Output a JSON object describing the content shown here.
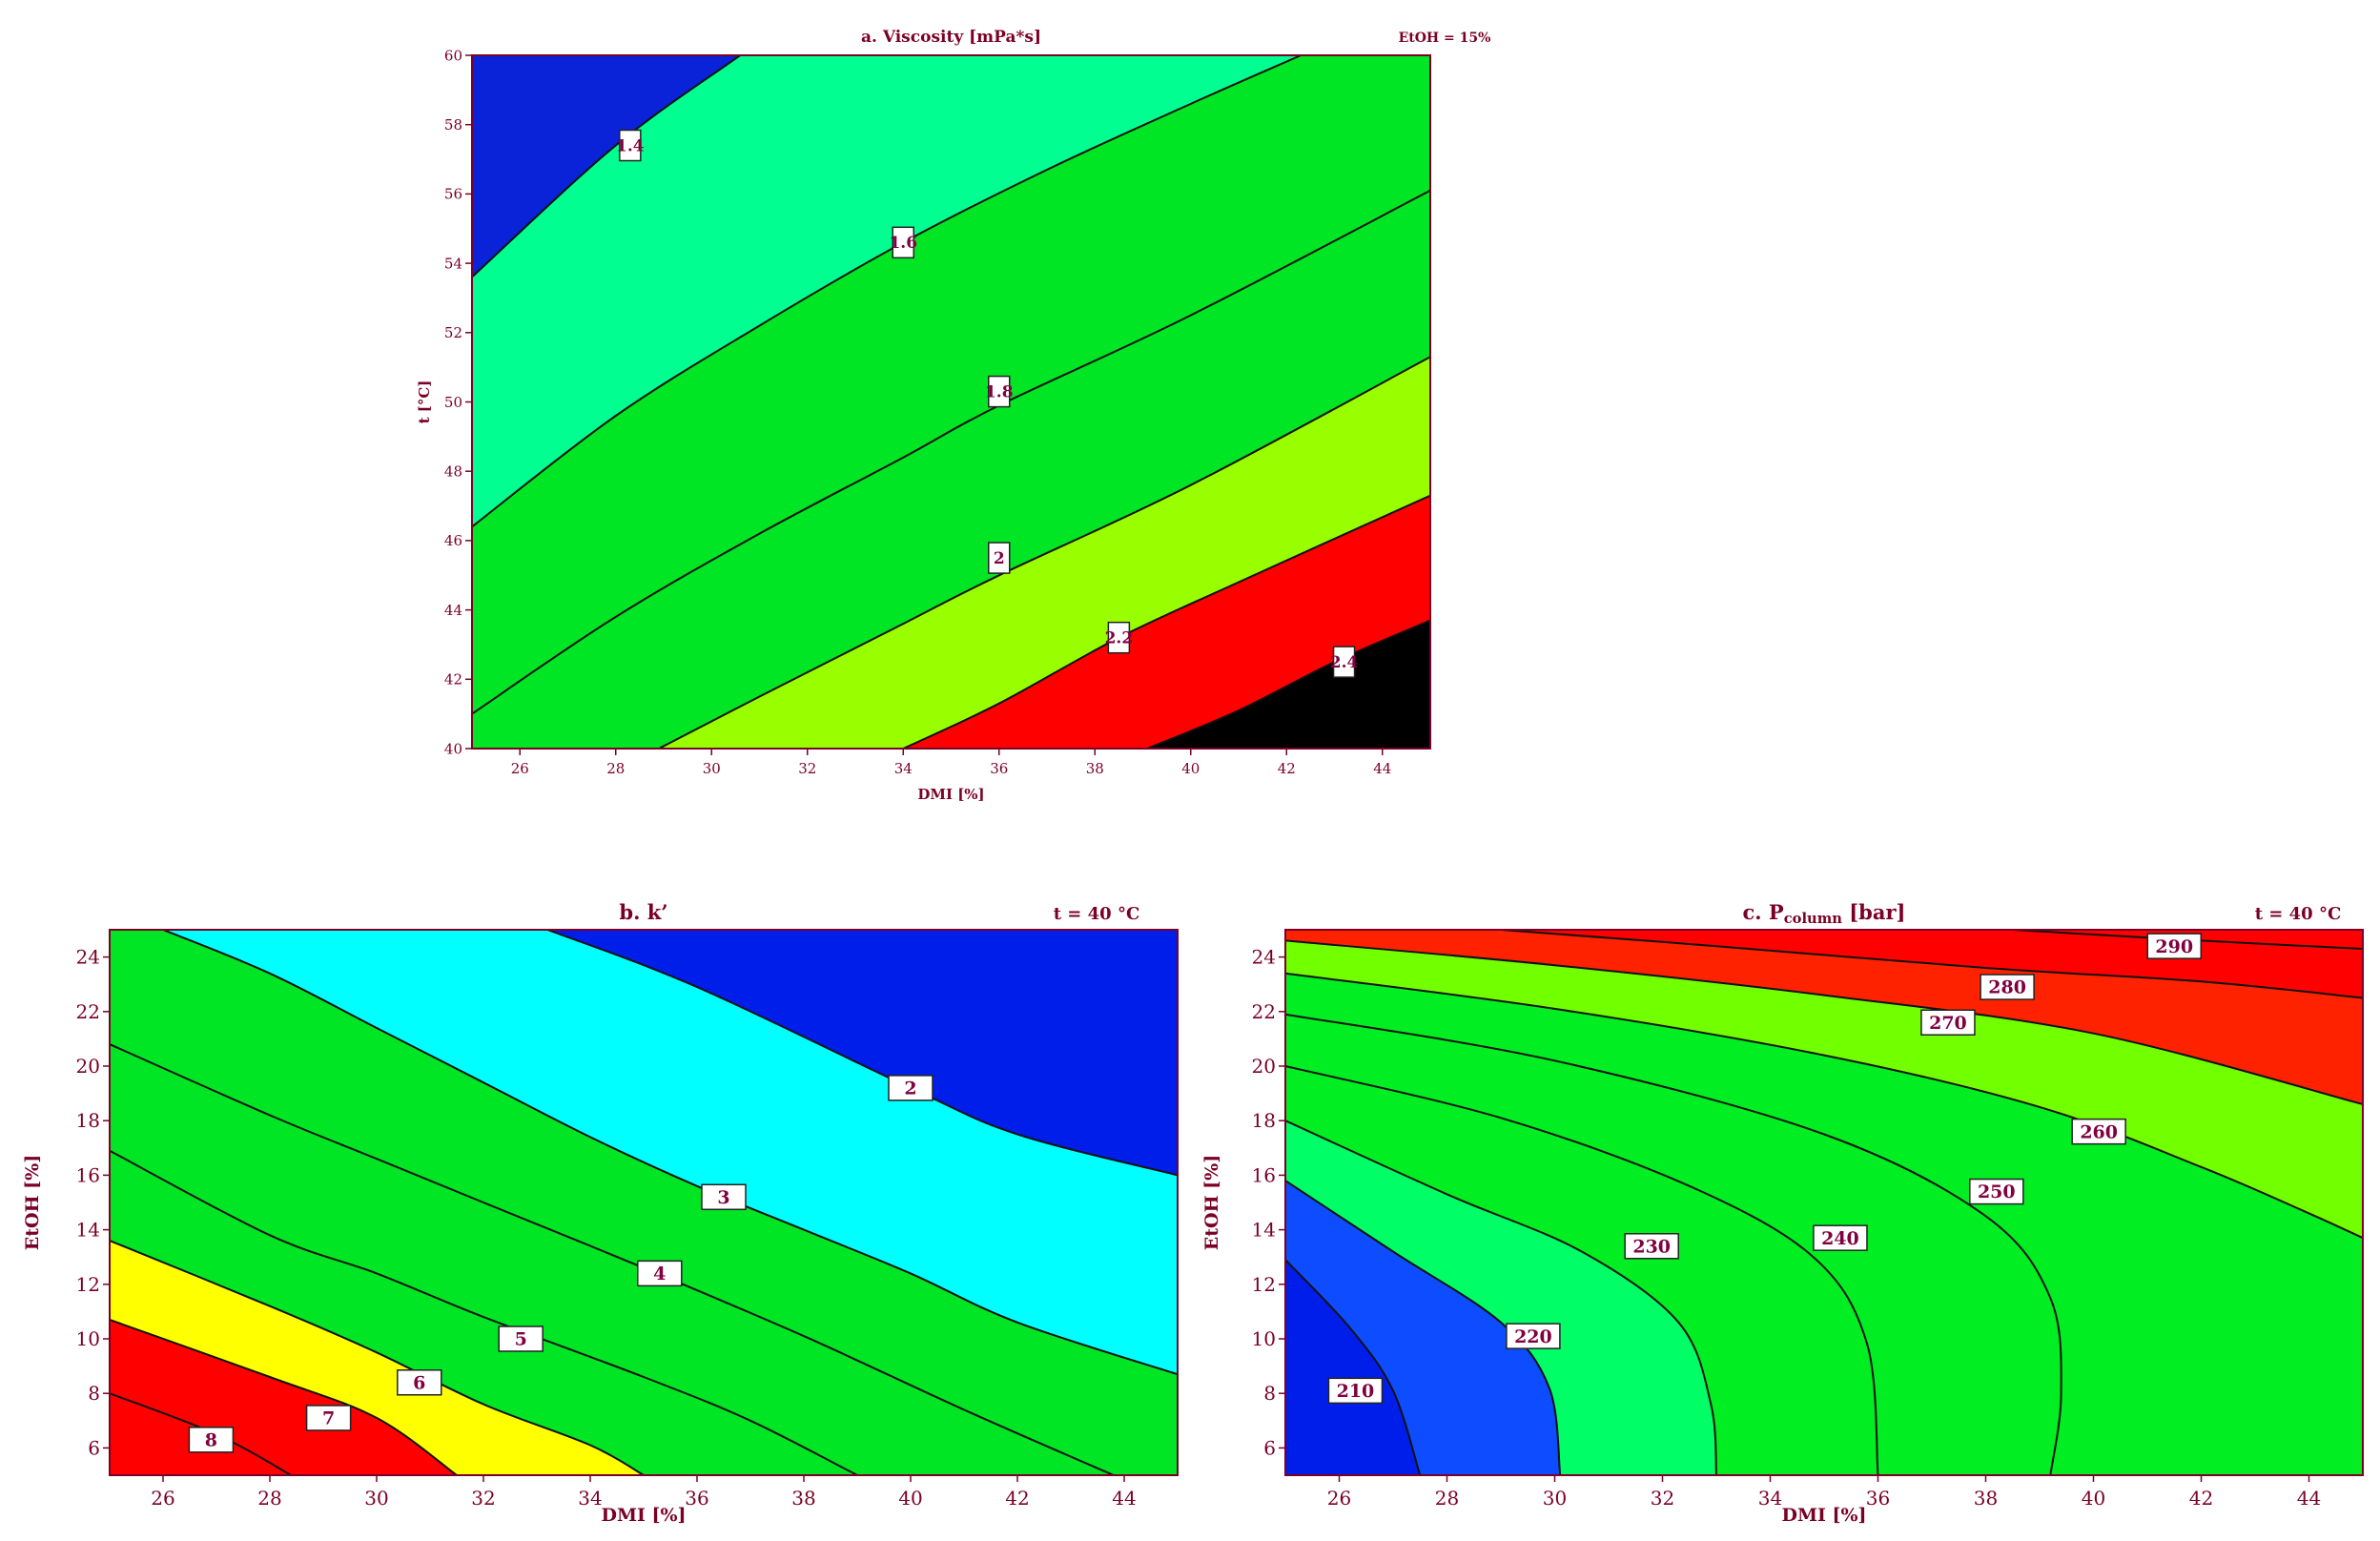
{
  "chart_data": [
    {
      "id": "a",
      "type": "contour",
      "title": "a. Viscosity [mPa*s]",
      "annotation": "EtOH = 15%",
      "xlabel": "DMI [%]",
      "ylabel": "t [°C]",
      "xlim": [
        25,
        45
      ],
      "ylim": [
        40,
        60
      ],
      "xticks": [
        26,
        28,
        30,
        32,
        34,
        36,
        38,
        40,
        42,
        44
      ],
      "yticks": [
        40,
        42,
        44,
        46,
        48,
        50,
        52,
        54,
        56,
        58,
        60
      ],
      "levels": [
        "1.4",
        "1.6",
        "1.8",
        "2",
        "2.2",
        "2.4"
      ],
      "contours": [
        {
          "level": "1.4",
          "points": [
            [
              25,
              53.6
            ],
            [
              28,
              57.4
            ],
            [
              30.6,
              60
            ]
          ],
          "label_at": [
            28.3,
            57.4
          ]
        },
        {
          "level": "1.6",
          "points": [
            [
              25,
              46.4
            ],
            [
              28,
              49.6
            ],
            [
              31,
              52.2
            ],
            [
              34,
              54.6
            ],
            [
              37,
              56.7
            ],
            [
              40,
              58.6
            ],
            [
              42.3,
              60
            ]
          ],
          "label_at": [
            34,
            54.6
          ]
        },
        {
          "level": "1.8",
          "points": [
            [
              25,
              41.0
            ],
            [
              28,
              43.8
            ],
            [
              31,
              46.2
            ],
            [
              34,
              48.4
            ],
            [
              36,
              49.9
            ],
            [
              40,
              52.5
            ],
            [
              45,
              56.1
            ]
          ],
          "label_at": [
            36,
            50.3
          ]
        },
        {
          "level": "2",
          "points": [
            [
              28.9,
              40
            ],
            [
              31,
              41.5
            ],
            [
              34,
              43.6
            ],
            [
              36,
              45.0
            ],
            [
              40,
              47.6
            ],
            [
              45,
              51.3
            ]
          ],
          "label_at": [
            36,
            45.5
          ]
        },
        {
          "level": "2.2",
          "points": [
            [
              34,
              40
            ],
            [
              36,
              41.3
            ],
            [
              38.5,
              43.2
            ],
            [
              41,
              44.8
            ],
            [
              45,
              47.3
            ]
          ],
          "label_at": [
            38.5,
            43.2
          ]
        },
        {
          "level": "2.4",
          "points": [
            [
              39.1,
              40
            ],
            [
              41,
              41.1
            ],
            [
              43,
              42.5
            ],
            [
              45,
              43.7
            ]
          ],
          "label_at": [
            43.2,
            42.5
          ]
        }
      ]
    },
    {
      "id": "b",
      "type": "contour",
      "title": "b. k’",
      "annotation": "t = 40 °C",
      "xlabel": "DMI [%]",
      "ylabel": "EtOH [%]",
      "xlim": [
        25,
        45
      ],
      "ylim": [
        5,
        25
      ],
      "xticks": [
        26,
        28,
        30,
        32,
        34,
        36,
        38,
        40,
        42,
        44
      ],
      "yticks": [
        6,
        8,
        10,
        12,
        14,
        16,
        18,
        20,
        22,
        24
      ],
      "levels": [
        "2",
        "3",
        "4",
        "5",
        "6",
        "7",
        "8"
      ],
      "contours": [
        {
          "level": "2",
          "points": [
            [
              33.2,
              25
            ],
            [
              36,
              22.9
            ],
            [
              40,
              19.2
            ],
            [
              42,
              17.5
            ],
            [
              45,
              16.0
            ]
          ],
          "label_at": [
            40,
            19.2
          ]
        },
        {
          "level": "3",
          "points": [
            [
              26,
              25
            ],
            [
              28,
              23.4
            ],
            [
              30,
              21.4
            ],
            [
              32,
              19.4
            ],
            [
              34,
              17.4
            ],
            [
              36,
              15.6
            ],
            [
              38,
              14.0
            ],
            [
              40,
              12.4
            ],
            [
              42,
              10.6
            ],
            [
              45,
              8.7
            ]
          ],
          "label_at": [
            36.5,
            15.2
          ]
        },
        {
          "level": "4",
          "points": [
            [
              25,
              20.8
            ],
            [
              28,
              18.2
            ],
            [
              30,
              16.6
            ],
            [
              32,
              15.0
            ],
            [
              35,
              12.6
            ],
            [
              38,
              10.1
            ],
            [
              41,
              7.4
            ],
            [
              43.8,
              5
            ]
          ],
          "label_at": [
            35.3,
            12.4
          ]
        },
        {
          "level": "5",
          "points": [
            [
              25,
              16.9
            ],
            [
              28,
              13.8
            ],
            [
              30,
              12.4
            ],
            [
              32,
              10.8
            ],
            [
              35,
              8.6
            ],
            [
              37,
              7.0
            ],
            [
              39,
              5
            ]
          ],
          "label_at": [
            32.7,
            10.0
          ]
        },
        {
          "level": "6",
          "points": [
            [
              25,
              13.6
            ],
            [
              28,
              11.2
            ],
            [
              30,
              9.5
            ],
            [
              32,
              7.6
            ],
            [
              34,
              6.1
            ],
            [
              35,
              5
            ]
          ],
          "label_at": [
            30.8,
            8.4
          ]
        },
        {
          "level": "7",
          "points": [
            [
              25,
              10.7
            ],
            [
              28,
              8.6
            ],
            [
              30,
              7.1
            ],
            [
              31.5,
              5
            ]
          ],
          "label_at": [
            29.1,
            7.1
          ]
        },
        {
          "level": "8",
          "points": [
            [
              25,
              8.0
            ],
            [
              27,
              6.5
            ],
            [
              28.4,
              5
            ]
          ],
          "label_at": [
            26.9,
            6.3
          ]
        }
      ]
    },
    {
      "id": "c",
      "type": "contour",
      "title": "c. Pcolumn [bar]",
      "title_main": "c. P",
      "title_sub": "column",
      "title_unit": " [bar]",
      "annotation": "t = 40 °C",
      "xlabel": "DMI [%]",
      "ylabel": "EtOH [%]",
      "xlim": [
        25,
        45
      ],
      "ylim": [
        5,
        25
      ],
      "xticks": [
        26,
        28,
        30,
        32,
        34,
        36,
        38,
        40,
        42,
        44
      ],
      "yticks": [
        6,
        8,
        10,
        12,
        14,
        16,
        18,
        20,
        22,
        24
      ],
      "levels": [
        "210",
        "220",
        "230",
        "240",
        "250",
        "260",
        "270",
        "280",
        "290"
      ],
      "contours": [
        {
          "level": "210",
          "points": [
            [
              25,
              12.9
            ],
            [
              26.2,
              10.4
            ],
            [
              27,
              8.1
            ],
            [
              27.5,
              5
            ]
          ],
          "label_at": [
            26.3,
            8.1
          ]
        },
        {
          "level": "220",
          "points": [
            [
              25,
              15.8
            ],
            [
              27,
              13.2
            ],
            [
              29,
              10.6
            ],
            [
              29.9,
              8.2
            ],
            [
              30.1,
              5
            ]
          ],
          "label_at": [
            29.6,
            10.1
          ]
        },
        {
          "level": "230",
          "points": [
            [
              25,
              18.0
            ],
            [
              28,
              15.3
            ],
            [
              30.5,
              13.2
            ],
            [
              32.3,
              10.6
            ],
            [
              32.9,
              7.6
            ],
            [
              33,
              5
            ]
          ],
          "label_at": [
            31.8,
            13.4
          ]
        },
        {
          "level": "240",
          "points": [
            [
              25,
              20.0
            ],
            [
              29,
              18.1
            ],
            [
              32.5,
              15.6
            ],
            [
              34.8,
              13.0
            ],
            [
              35.8,
              9.8
            ],
            [
              36,
              5
            ]
          ],
          "label_at": [
            35.3,
            13.7
          ]
        },
        {
          "level": "250",
          "points": [
            [
              25,
              21.9
            ],
            [
              30,
              20.2
            ],
            [
              35,
              17.5
            ],
            [
              38,
              14.5
            ],
            [
              39.2,
              11.5
            ],
            [
              39.4,
              8.0
            ],
            [
              39.2,
              5
            ]
          ],
          "label_at": [
            38.2,
            15.4
          ]
        },
        {
          "level": "260",
          "points": [
            [
              25,
              23.4
            ],
            [
              30,
              22.1
            ],
            [
              35,
              20.4
            ],
            [
              39,
              18.5
            ],
            [
              42,
              16.3
            ],
            [
              44,
              14.6
            ],
            [
              45,
              13.7
            ]
          ],
          "label_at": [
            40.1,
            17.6
          ]
        },
        {
          "level": "270",
          "points": [
            [
              25,
              24.6
            ],
            [
              30,
              23.7
            ],
            [
              35,
              22.6
            ],
            [
              40,
              21.2
            ],
            [
              45,
              18.6
            ]
          ],
          "label_at": [
            37.3,
            21.6
          ]
        },
        {
          "level": "280",
          "points": [
            [
              29,
              25
            ],
            [
              33,
              24.4
            ],
            [
              38,
              23.6
            ],
            [
              42,
              23.1
            ],
            [
              45,
              22.5
            ]
          ],
          "label_at": [
            38.4,
            22.9
          ]
        },
        {
          "level": "290",
          "points": [
            [
              38.5,
              25
            ],
            [
              42,
              24.6
            ],
            [
              45,
              24.3
            ]
          ],
          "label_at": [
            41.5,
            24.4
          ]
        }
      ]
    }
  ]
}
